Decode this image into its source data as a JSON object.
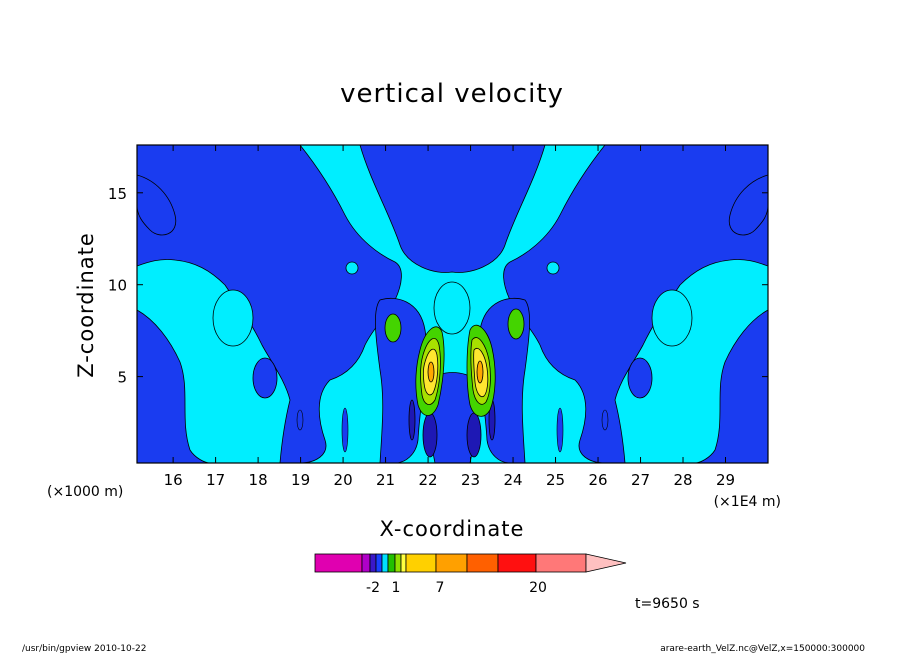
{
  "chart_data": {
    "type": "heatmap",
    "title": "vertical velocity",
    "xlabel": "X-coordinate",
    "ylabel": "Z-coordinate",
    "x_unit_left": "(×1000 m)",
    "x_unit_right": "(×1E4 m)",
    "xlim": [
      15.15,
      30.0
    ],
    "ylim": [
      0.3,
      17.6
    ],
    "x_ticks": [
      16,
      17,
      18,
      19,
      20,
      21,
      22,
      23,
      24,
      25,
      26,
      27,
      28,
      29
    ],
    "y_ticks": [
      5,
      10,
      15
    ],
    "colorbar": {
      "colors": [
        "#e000b0",
        "#b000c8",
        "#3a18c8",
        "#1840ff",
        "#00e0ff",
        "#22c000",
        "#90e000",
        "#ffff40",
        "#ffd000",
        "#ffa000",
        "#ff6000",
        "#ff1010",
        "#ff7878",
        "#ffc0c0"
      ],
      "labels": [
        "-2",
        "1",
        "7",
        "20"
      ],
      "label_values": [
        -2,
        1,
        7,
        20
      ]
    },
    "colors": {
      "light_cyan": "#00eeff",
      "dark_blue": "#1a3cf0",
      "navy": "#1e18b4",
      "green": "#44d400",
      "light_green": "#a8e000",
      "yellow": "#ffe630",
      "orange": "#ffa800"
    },
    "annotation": "t=9650 s"
  },
  "footer": {
    "left": "/usr/bin/gpview   2010-10-22",
    "right": "arare-earth_VelZ.nc@VelZ,x=150000:300000"
  }
}
